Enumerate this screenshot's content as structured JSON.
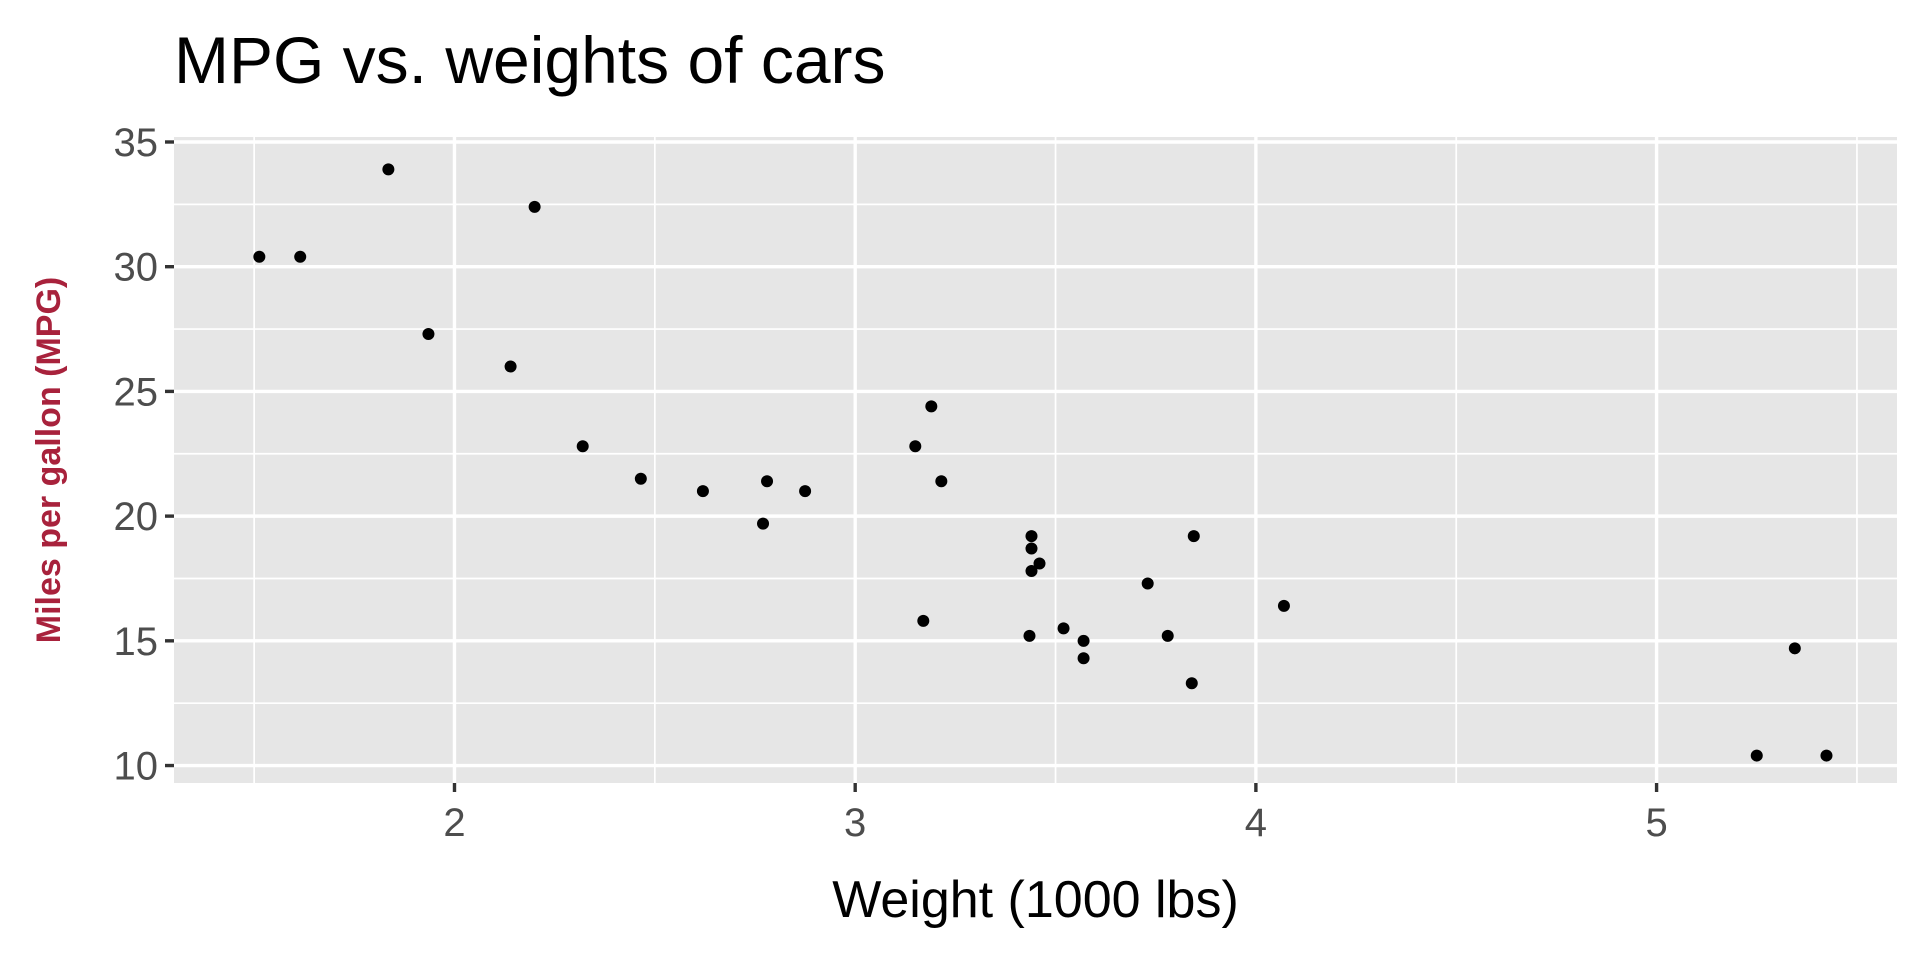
{
  "chart_data": {
    "type": "scatter",
    "title": "MPG vs. weights of cars",
    "xlabel": "Weight (1000 lbs)",
    "ylabel": "Miles per gallon (MPG)",
    "xlim": [
      1.3,
      5.6
    ],
    "ylim": [
      9.3,
      35.2
    ],
    "x_ticks": [
      2,
      3,
      4,
      5
    ],
    "y_ticks": [
      10,
      15,
      20,
      25,
      30,
      35
    ],
    "x_minor": [
      1.5,
      2.5,
      3.5,
      4.5,
      5.5
    ],
    "y_minor": [
      12.5,
      17.5,
      22.5,
      27.5,
      32.5
    ],
    "grid": true,
    "colors": {
      "panel": "#e6e6e6",
      "point": "#000000",
      "ylabel": "#a8223c"
    },
    "points": [
      {
        "x": 2.62,
        "y": 21.0
      },
      {
        "x": 2.875,
        "y": 21.0
      },
      {
        "x": 2.32,
        "y": 22.8
      },
      {
        "x": 3.215,
        "y": 21.4
      },
      {
        "x": 3.44,
        "y": 18.7
      },
      {
        "x": 3.46,
        "y": 18.1
      },
      {
        "x": 3.57,
        "y": 14.3
      },
      {
        "x": 3.19,
        "y": 24.4
      },
      {
        "x": 3.15,
        "y": 22.8
      },
      {
        "x": 3.44,
        "y": 19.2
      },
      {
        "x": 3.44,
        "y": 17.8
      },
      {
        "x": 4.07,
        "y": 16.4
      },
      {
        "x": 3.73,
        "y": 17.3
      },
      {
        "x": 3.78,
        "y": 15.2
      },
      {
        "x": 5.25,
        "y": 10.4
      },
      {
        "x": 5.424,
        "y": 10.4
      },
      {
        "x": 5.345,
        "y": 14.7
      },
      {
        "x": 2.2,
        "y": 32.4
      },
      {
        "x": 1.615,
        "y": 30.4
      },
      {
        "x": 1.835,
        "y": 33.9
      },
      {
        "x": 2.465,
        "y": 21.5
      },
      {
        "x": 3.52,
        "y": 15.5
      },
      {
        "x": 3.435,
        "y": 15.2
      },
      {
        "x": 3.84,
        "y": 13.3
      },
      {
        "x": 3.845,
        "y": 19.2
      },
      {
        "x": 1.935,
        "y": 27.3
      },
      {
        "x": 2.14,
        "y": 26.0
      },
      {
        "x": 1.513,
        "y": 30.4
      },
      {
        "x": 3.17,
        "y": 15.8
      },
      {
        "x": 2.77,
        "y": 19.7
      },
      {
        "x": 3.57,
        "y": 15.0
      },
      {
        "x": 2.78,
        "y": 21.4
      }
    ]
  }
}
